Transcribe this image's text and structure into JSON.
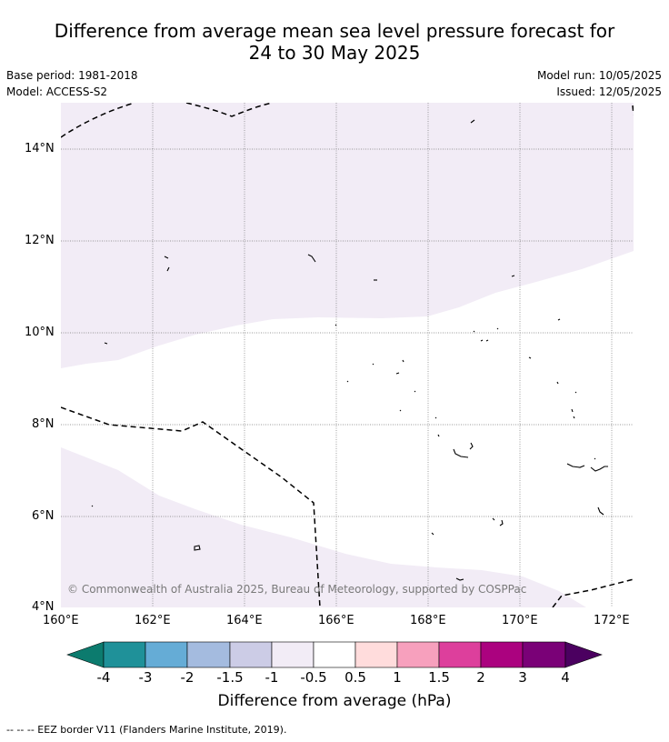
{
  "title_line1": "Difference from average mean sea level pressure forecast for",
  "title_line2": "24 to 30 May 2025",
  "base_period": "Base period: 1981-2018",
  "model": "Model: ACCESS-S2",
  "model_run": "Model run: 10/05/2025",
  "issued": "Issued: 12/05/2025",
  "copyright": "© Commonwealth of Australia 2025, Bureau of Meteorology, supported by COSPPac",
  "lat_labels": [
    "14°N",
    "12°N",
    "10°N",
    "8°N",
    "6°N",
    "4°N"
  ],
  "lon_labels": [
    "160°E",
    "162°E",
    "164°E",
    "166°E",
    "168°E",
    "170°E",
    "172°E"
  ],
  "colorbar": {
    "title": "Difference from average (hPa)",
    "tick_labels": [
      "-4",
      "-3",
      "-2",
      "-1.5",
      "-1",
      "-0.5",
      "0.5",
      "1",
      "1.5",
      "2",
      "3",
      "4"
    ],
    "colors": [
      "#0c7b6e",
      "#1f9199",
      "#65acd6",
      "#a4bbdf",
      "#cccce6",
      "#f2ecf6",
      "#ffffff",
      "#ffdcdc",
      "#f7a0bd",
      "#dd3f9c",
      "#ab027f",
      "#7a0177",
      "#4b0060"
    ]
  },
  "legend_footer": "--  --  -- EEZ border V11 (Flanders Marine Institute, 2019)."
}
